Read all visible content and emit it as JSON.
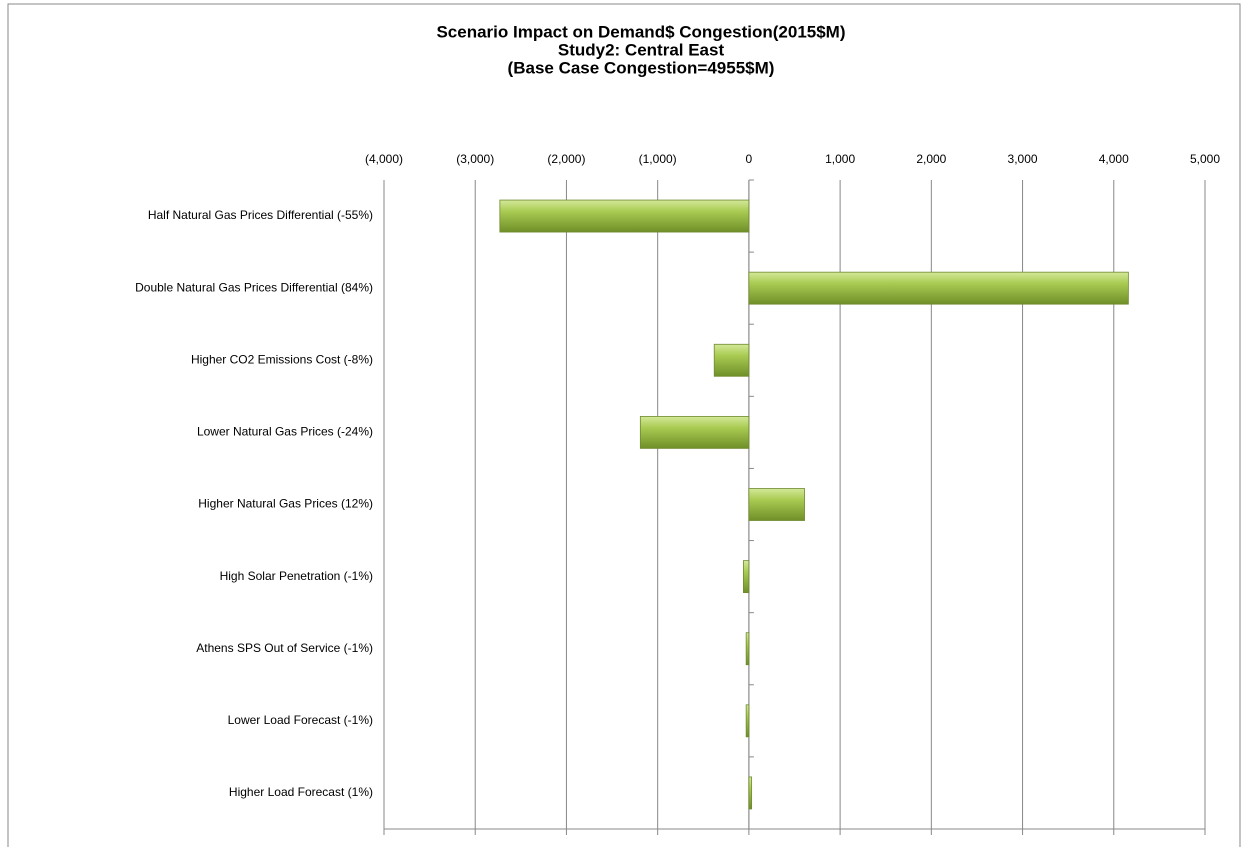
{
  "chart_data": {
    "type": "barh",
    "title": [
      "Scenario Impact on Demand$ Congestion(2015$M)",
      "Study2: Central East",
      "(Base Case Congestion=4955$M)"
    ],
    "categories": [
      "Half Natural Gas Prices Differential (-55%)",
      "Double Natural Gas Prices Differential (84%)",
      "Higher CO2 Emissions Cost (-8%)",
      "Lower Natural Gas Prices (-24%)",
      "Higher Natural Gas Prices (12%)",
      "High Solar Penetration (-1%)",
      "Athens SPS Out of Service (-1%)",
      "Lower Load Forecast (-1%)",
      "Higher Load Forecast (1%)"
    ],
    "values": [
      -2730,
      4160,
      -380,
      -1190,
      610,
      -60,
      -30,
      -30,
      30
    ],
    "color": "#9bbb45",
    "xlim": [
      -4000,
      5000
    ],
    "xticks": [
      {
        "value": -4000,
        "label": "(4,000)"
      },
      {
        "value": -3000,
        "label": "(3,000)"
      },
      {
        "value": -2000,
        "label": "(2,000)"
      },
      {
        "value": -1000,
        "label": "(1,000)"
      },
      0,
      {
        "value": 1000,
        "label": "1,000"
      },
      {
        "value": 2000,
        "label": "2,000"
      },
      {
        "value": 3000,
        "label": "3,000"
      },
      {
        "value": 4000,
        "label": "4,000"
      },
      {
        "value": 5000,
        "label": "5,000"
      }
    ],
    "negative_tick_color": "#ff0000",
    "grid": true
  }
}
